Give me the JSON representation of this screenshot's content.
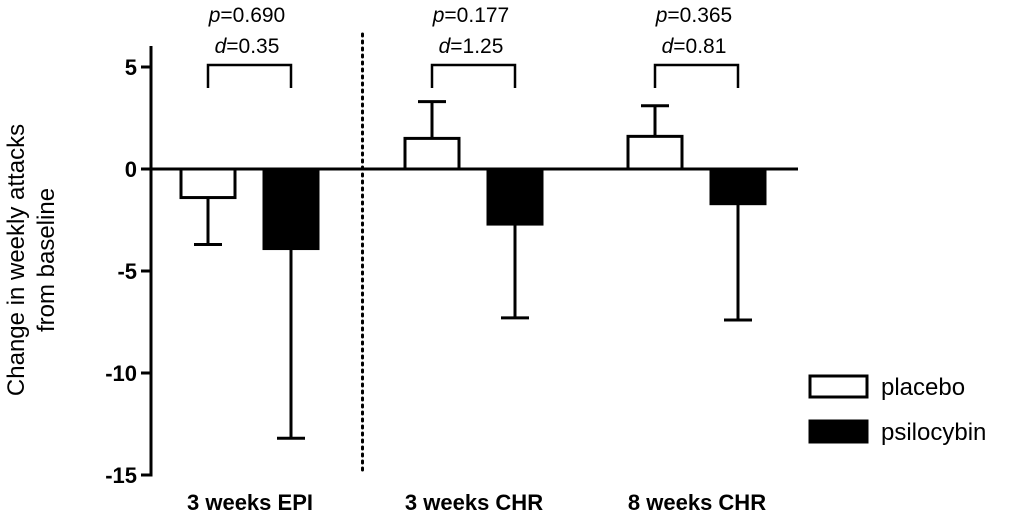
{
  "chart_data": {
    "type": "bar",
    "ylabel_lines": [
      "Change in weekly attacks",
      "from baseline"
    ],
    "ylim": [
      -15,
      6
    ],
    "yticks": [
      5,
      0,
      -5,
      -10,
      -15
    ],
    "ytick_labels": [
      "5",
      "0",
      "-5",
      "-10",
      "-15"
    ],
    "categories": [
      "3 weeks EPI",
      "3 weeks CHR",
      "8 weeks CHR"
    ],
    "series": [
      {
        "name": "placebo",
        "fill": "#ffffff",
        "values": [
          -1.4,
          1.5,
          1.6
        ],
        "error_tips": [
          -3.7,
          3.3,
          3.1
        ]
      },
      {
        "name": "psilocybin",
        "fill": "#000000",
        "values": [
          -3.9,
          -2.7,
          -1.7
        ],
        "error_tips": [
          -13.2,
          -7.3,
          -7.4
        ]
      }
    ],
    "annotations": [
      {
        "p_label": "p",
        "p_value": "=0.690",
        "d_label": "d",
        "d_value": "=0.35"
      },
      {
        "p_label": "p",
        "p_value": "=0.177",
        "d_label": "d",
        "d_value": "=1.25"
      },
      {
        "p_label": "p",
        "p_value": "=0.365",
        "d_label": "d",
        "d_value": "=0.81"
      }
    ],
    "separator_after_category": 0,
    "legend_position": "right",
    "grid": false
  }
}
